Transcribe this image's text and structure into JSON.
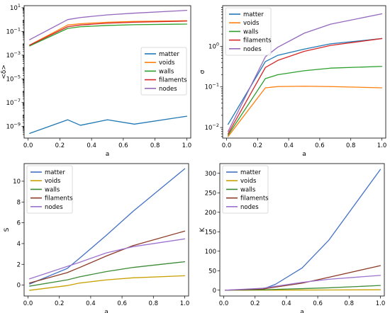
{
  "chart_data": [
    {
      "type": "line",
      "xlabel": "a",
      "ylabel": "<δ>",
      "yscale": "log",
      "xlim": [
        -0.025,
        1.025
      ],
      "ylim": [
        1e-10,
        15
      ],
      "xticks": [
        0.0,
        0.2,
        0.4,
        0.6,
        0.8,
        1.0
      ],
      "xtick_labels": [
        "0.0",
        "0.2",
        "0.4",
        "0.6",
        "0.8",
        "1.0"
      ],
      "yticks": [
        1e-09,
        1e-07,
        1e-05,
        0.001,
        0.1,
        10
      ],
      "ytick_labels": [
        [
          "10",
          "−9"
        ],
        [
          "10",
          "−7"
        ],
        [
          "10",
          "−5"
        ],
        [
          "10",
          "−3"
        ],
        [
          "10",
          "−1"
        ],
        [
          "10",
          "1"
        ]
      ],
      "legend_position": "center-right",
      "x": [
        0.01,
        0.25,
        0.33,
        0.5,
        0.67,
        1.0
      ],
      "series": [
        {
          "name": "matter",
          "color": "#1f77b4",
          "values": [
            2.5e-10,
            3.5e-09,
            1.2e-09,
            3.5e-09,
            1.5e-09,
            7e-09
          ]
        },
        {
          "name": "voids",
          "color": "#ff7f0e",
          "values": [
            0.007,
            0.35,
            0.45,
            0.6,
            0.7,
            0.8
          ]
        },
        {
          "name": "walls",
          "color": "#2ca02c",
          "values": [
            0.006,
            0.18,
            0.25,
            0.32,
            0.37,
            0.42
          ]
        },
        {
          "name": "filaments",
          "color": "#d62728",
          "values": [
            0.007,
            0.25,
            0.35,
            0.5,
            0.6,
            0.75
          ]
        },
        {
          "name": "nodes",
          "color": "#9467bd",
          "values": [
            0.02,
            1.0,
            1.5,
            2.5,
            3.5,
            6.0
          ]
        }
      ]
    },
    {
      "type": "line",
      "xlabel": "a",
      "ylabel": "σ",
      "yscale": "log",
      "xlim": [
        -0.025,
        1.025
      ],
      "ylim": [
        0.0055,
        10
      ],
      "xticks": [
        0.0,
        0.2,
        0.4,
        0.6,
        0.8,
        1.0
      ],
      "xtick_labels": [
        "0.0",
        "0.2",
        "0.4",
        "0.6",
        "0.8",
        "1.0"
      ],
      "yticks": [
        0.01,
        0.1,
        1
      ],
      "ytick_labels": [
        [
          "10",
          "−2"
        ],
        [
          "10",
          "−1"
        ],
        [
          "10",
          "0"
        ]
      ],
      "legend_position": "top-left",
      "x": [
        0.01,
        0.25,
        0.33,
        0.5,
        0.67,
        1.0
      ],
      "series": [
        {
          "name": "matter",
          "color": "#1f77b4",
          "values": [
            0.012,
            0.42,
            0.6,
            0.85,
            1.15,
            1.55
          ]
        },
        {
          "name": "voids",
          "color": "#ff7f0e",
          "values": [
            0.006,
            0.095,
            0.102,
            0.104,
            0.102,
            0.095
          ]
        },
        {
          "name": "walls",
          "color": "#2ca02c",
          "values": [
            0.0065,
            0.16,
            0.2,
            0.25,
            0.29,
            0.32
          ]
        },
        {
          "name": "filaments",
          "color": "#d62728",
          "values": [
            0.007,
            0.3,
            0.45,
            0.75,
            1.05,
            1.55
          ]
        },
        {
          "name": "nodes",
          "color": "#9467bd",
          "values": [
            0.008,
            0.55,
            0.95,
            2.1,
            3.5,
            6.3
          ]
        }
      ]
    },
    {
      "type": "line",
      "xlabel": "a",
      "ylabel": "S",
      "yscale": "linear",
      "xlim": [
        -0.025,
        1.025
      ],
      "ylim": [
        -1.05,
        11.7
      ],
      "xticks": [
        0.0,
        0.2,
        0.4,
        0.6,
        0.8,
        1.0
      ],
      "xtick_labels": [
        "0.0",
        "0.2",
        "0.4",
        "0.6",
        "0.8",
        "1.0"
      ],
      "yticks": [
        0,
        2,
        4,
        6,
        8,
        10
      ],
      "ytick_labels": [
        "0",
        "2",
        "4",
        "6",
        "8",
        "10"
      ],
      "legend_position": "top-left",
      "x": [
        0.01,
        0.25,
        0.33,
        0.5,
        0.67,
        1.0
      ],
      "series": [
        {
          "name": "matter",
          "color": "#4472c4",
          "values": [
            0.1,
            1.6,
            2.6,
            4.8,
            7.1,
            11.2
          ]
        },
        {
          "name": "voids",
          "color": "#c8a000",
          "values": [
            -0.5,
            -0.05,
            0.2,
            0.5,
            0.7,
            0.9
          ]
        },
        {
          "name": "walls",
          "color": "#3d8b37",
          "values": [
            -0.1,
            0.5,
            0.8,
            1.3,
            1.7,
            2.25
          ]
        },
        {
          "name": "filaments",
          "color": "#8b3a26",
          "values": [
            0.2,
            1.2,
            1.7,
            2.8,
            3.8,
            5.2
          ]
        },
        {
          "name": "nodes",
          "color": "#9b72cf",
          "values": [
            0.6,
            1.8,
            2.2,
            3.1,
            3.7,
            4.45
          ]
        }
      ]
    },
    {
      "type": "line",
      "xlabel": "a",
      "ylabel": "K",
      "yscale": "linear",
      "xlim": [
        -0.025,
        1.025
      ],
      "ylim": [
        -15,
        325
      ],
      "xticks": [
        0.0,
        0.2,
        0.4,
        0.6,
        0.8,
        1.0
      ],
      "xtick_labels": [
        "0.0",
        "0.2",
        "0.4",
        "0.6",
        "0.8",
        "1.0"
      ],
      "yticks": [
        0,
        50,
        100,
        150,
        200,
        250,
        300
      ],
      "ytick_labels": [
        "0",
        "50",
        "100",
        "150",
        "200",
        "250",
        "300"
      ],
      "legend_position": "top-left",
      "x": [
        0.01,
        0.25,
        0.33,
        0.5,
        0.67,
        1.0
      ],
      "series": [
        {
          "name": "matter",
          "color": "#4472c4",
          "values": [
            0,
            3,
            15,
            57,
            128,
            310
          ]
        },
        {
          "name": "voids",
          "color": "#c8a000",
          "values": [
            0,
            0,
            0.1,
            0.3,
            0.5,
            1
          ]
        },
        {
          "name": "walls",
          "color": "#3d8b37",
          "values": [
            0,
            1,
            2,
            4,
            6,
            12
          ]
        },
        {
          "name": "filaments",
          "color": "#8b3a26",
          "values": [
            0,
            3,
            8,
            18,
            33,
            63
          ]
        },
        {
          "name": "nodes",
          "color": "#9b72cf",
          "values": [
            0,
            5,
            10,
            20,
            28,
            38
          ]
        }
      ]
    }
  ]
}
